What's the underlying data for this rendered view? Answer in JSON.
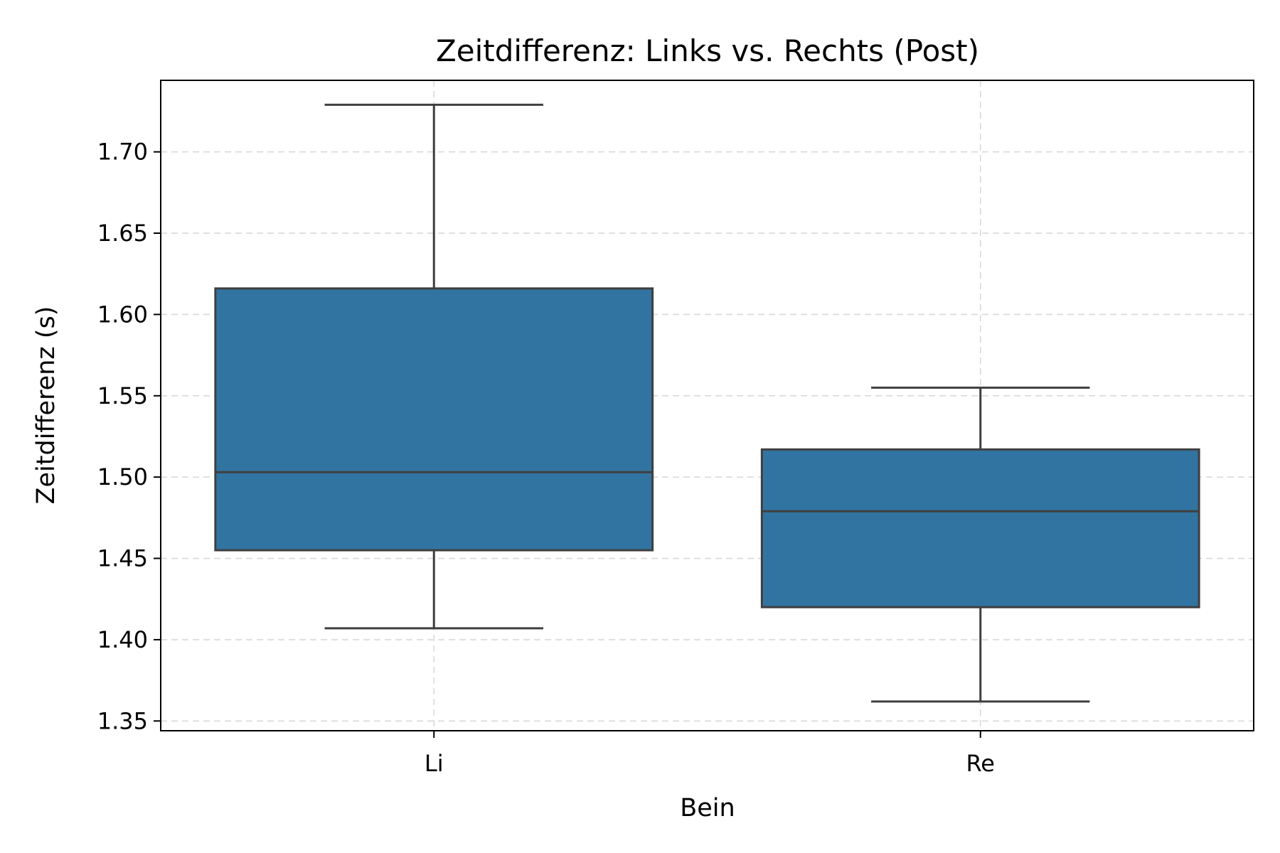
{
  "chart_data": {
    "type": "box",
    "title": "Zeitdifferenz: Links vs. Rechts (Post)",
    "xlabel": "Bein",
    "ylabel": "Zeitdifferenz (s)",
    "categories": [
      "Li",
      "Re"
    ],
    "boxes": [
      {
        "category": "Li",
        "whisker_low": 1.407,
        "q1": 1.455,
        "median": 1.503,
        "q3": 1.616,
        "whisker_high": 1.729
      },
      {
        "category": "Re",
        "whisker_low": 1.362,
        "q1": 1.42,
        "median": 1.479,
        "q3": 1.517,
        "whisker_high": 1.555
      }
    ],
    "ylim": [
      1.344,
      1.744
    ],
    "yticks": [
      1.35,
      1.4,
      1.45,
      1.5,
      1.55,
      1.6,
      1.65,
      1.7
    ],
    "ytick_labels": [
      "1.35",
      "1.40",
      "1.45",
      "1.50",
      "1.55",
      "1.60",
      "1.65",
      "1.70"
    ],
    "grid": true,
    "box_color": "#3274a1",
    "line_color": "#3f3f3f"
  }
}
